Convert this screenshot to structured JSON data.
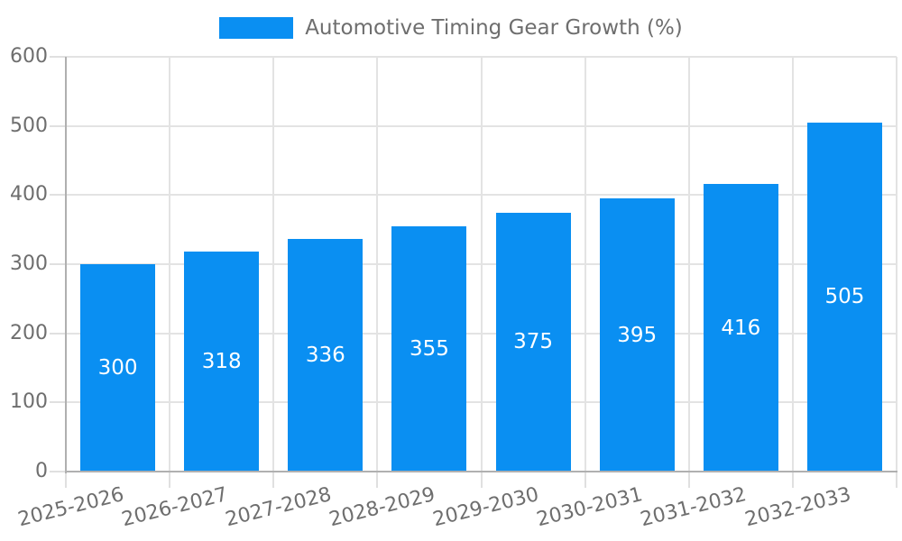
{
  "legend": {
    "label": "Automotive Timing Gear Growth (%)"
  },
  "y_axis": {
    "tick_labels": [
      "0",
      "100",
      "200",
      "300",
      "400",
      "500",
      "600"
    ]
  },
  "x_axis": {
    "tick_labels": [
      "2025-2026",
      "2026-2027",
      "2027-2028",
      "2028-2029",
      "2029-2030",
      "2030-2031",
      "2031-2032",
      "2032-2033"
    ]
  },
  "chart_data": {
    "type": "bar",
    "title": "Automotive Timing Gear Growth (%)",
    "categories": [
      "2025-2026",
      "2026-2027",
      "2027-2028",
      "2028-2029",
      "2029-2030",
      "2030-2031",
      "2031-2032",
      "2032-2033"
    ],
    "series": [
      {
        "name": "Automotive Timing Gear Growth (%)",
        "color": "#0a8ff2",
        "values": [
          300,
          318,
          336,
          355,
          375,
          395,
          416,
          505
        ]
      }
    ],
    "data_labels_shown": true,
    "data_label_position": "center",
    "xlabel": "",
    "ylabel": "",
    "ylim": [
      0,
      600
    ],
    "ytick_step": 100,
    "grid": true,
    "legend_position": "top-center"
  },
  "colors": {
    "bar": "#0a8ff2",
    "gridline": "#e3e3e3",
    "tick": "#e0e0e0",
    "axis": "#b0b0b0",
    "tick_label": "#6e6e6e",
    "legend_text": "#6e6e6e",
    "value_label": "#ffffff",
    "background": "#ffffff"
  }
}
